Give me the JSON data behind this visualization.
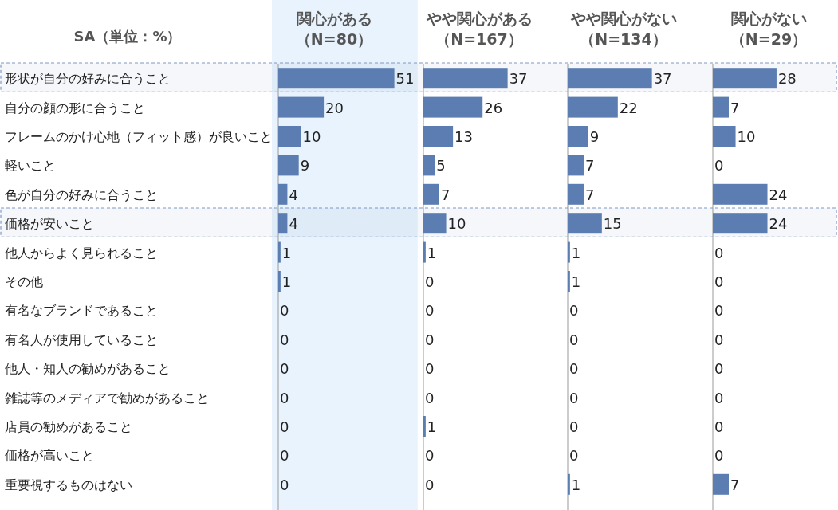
{
  "chart_data": [
    {
      "type": "bar",
      "orientation": "horizontal",
      "title": "関心がある（N=80）",
      "ylabel": "SA（単位：%）",
      "color": "#5b7db1",
      "data_labels": true,
      "categories": [
        "形状が自分の好みに合うこと",
        "自分の顔の形に合うこと",
        "フレームのかけ心地（フィット感）が良いこと",
        "軽いこと",
        "色が自分の好みに合うこと",
        "価格が安いこと",
        "他人からよく見られること",
        "その他",
        "有名なブランドであること",
        "有名人が使用していること",
        "他人・知人の勧めがあること",
        "雑誌等のメディアで勧めがあること",
        "店員の勧めがあること",
        "価格が高いこと",
        "重要視するものはない"
      ],
      "values": [
        51,
        20,
        10,
        9,
        4,
        4,
        1,
        1,
        0,
        0,
        0,
        0,
        0,
        0,
        0
      ],
      "bands": [
        {
          "axis": "x",
          "from": 0,
          "to": 64,
          "color": "#e8f3fd"
        },
        {
          "axis": "y",
          "from": "形状が自分の好みに合うこと",
          "to": "形状が自分の好みに合うこと",
          "color": "#7f98c4"
        },
        {
          "axis": "y",
          "from": "価格が安いこと",
          "to": "価格が安いこと",
          "color": "#7f98c4"
        }
      ]
    },
    {
      "type": "bar",
      "orientation": "horizontal",
      "title": "やや関心がある（N=167）",
      "color": "#5b7db1",
      "data_labels": true,
      "tick_labels": false,
      "categories": [
        "形状が自分の好みに合うこと",
        "自分の顔の形に合うこと",
        "フレームのかけ心地（フィット感）が良いこと",
        "軽いこと",
        "色が自分の好みに合うこと",
        "価格が安いこと",
        "他人からよく見られること",
        "その他",
        "有名なブランドであること",
        "有名人が使用していること",
        "他人・知人の勧めがあること",
        "雑誌等のメディアで勧めがあること",
        "店員の勧めがあること",
        "価格が高いこと",
        "重要視するものはない"
      ],
      "values": [
        37,
        26,
        13,
        5,
        7,
        10,
        1,
        0,
        0,
        0,
        0,
        0,
        1,
        0,
        0
      ]
    },
    {
      "type": "bar",
      "orientation": "horizontal",
      "title": "やや関心がない（N=134）",
      "color": "#5b7db1",
      "data_labels": true,
      "tick_labels": false,
      "categories": [
        "形状が自分の好みに合うこと",
        "自分の顔の形に合うこと",
        "フレームのかけ心地（フィット感）が良いこと",
        "軽いこと",
        "色が自分の好みに合うこと",
        "価格が安いこと",
        "他人からよく見られること",
        "その他",
        "有名なブランドであること",
        "有名人が使用していること",
        "他人・知人の勧めがあること",
        "雑誌等のメディアで勧めがあること",
        "店員の勧めがあること",
        "価格が高いこと",
        "重要視するものはない"
      ],
      "values": [
        37,
        22,
        9,
        7,
        7,
        15,
        1,
        1,
        0,
        0,
        0,
        0,
        0,
        0,
        1
      ]
    },
    {
      "type": "bar",
      "orientation": "horizontal",
      "title": "関心がない（N=29）",
      "color": "#5b7db1",
      "data_labels": true,
      "tick_labels": false,
      "categories": [
        "形状が自分の好みに合うこと",
        "自分の顔の形に合うこと",
        "フレームのかけ心地（フィット感）が良いこと",
        "軽いこと",
        "色が自分の好みに合うこと",
        "価格が安いこと",
        "他人からよく見られること",
        "その他",
        "有名なブランドであること",
        "有名人が使用していること",
        "他人・知人の勧めがあること",
        "雑誌等のメディアで勧めがあること",
        "店員の勧めがあること",
        "価格が高いこと",
        "重要視するものはない"
      ],
      "values": [
        28,
        7,
        10,
        0,
        24,
        24,
        0,
        0,
        0,
        0,
        0,
        0,
        0,
        0,
        7
      ]
    }
  ]
}
